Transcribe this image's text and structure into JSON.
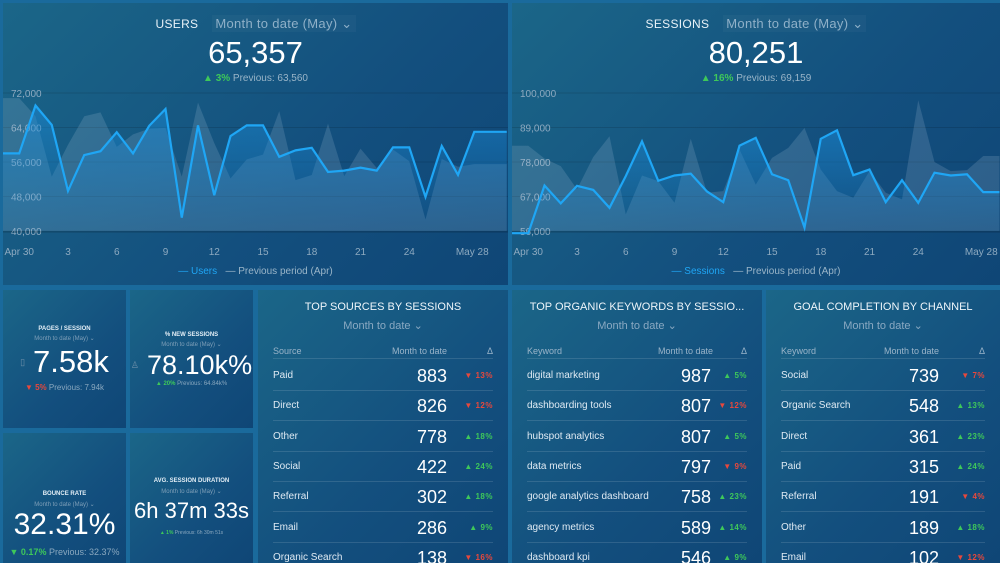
{
  "users": {
    "title": "USERS",
    "range": "Month to date (May)",
    "value": "65,357",
    "change": "3%",
    "direction": "up",
    "previous": "Previous: 63,560",
    "legend_current": "Users",
    "legend_previous": "Previous period (Apr)"
  },
  "sessions": {
    "title": "SESSIONS",
    "range": "Month to date (May)",
    "value": "80,251",
    "change": "16%",
    "direction": "up",
    "previous": "Previous: 69,159",
    "legend_current": "Sessions",
    "legend_previous": "Previous period (Apr)"
  },
  "kpis": [
    {
      "title": "PAGES / SESSION",
      "range": "Month to date (May)",
      "value": "7.58k",
      "change": "5%",
      "direction": "down",
      "previous": "Previous: 7.94k",
      "icon": "document-icon"
    },
    {
      "title": "% NEW SESSIONS",
      "range": "Month to date (May)",
      "value": "78.10k%",
      "change": "20%",
      "direction": "up",
      "previous": "Previous: 64.84k%",
      "icon": "user-icon"
    },
    {
      "title": "BOUNCE RATE",
      "range": "Month to date (May)",
      "value": "32.31%",
      "change": "0.17%",
      "direction": "down-good",
      "previous": "Previous: 32.37%"
    },
    {
      "title": "AVG. SESSION DURATION",
      "range": "Month to date (May)",
      "value": "6h 37m 33s",
      "change": "1%",
      "direction": "up",
      "previous": "Previous: 6h 30m 51s"
    }
  ],
  "tables": [
    {
      "title": "TOP SOURCES BY SESSIONS",
      "range": "Month to date",
      "col1": "Source",
      "col2": "Month to date",
      "col3": "Δ",
      "rows": [
        [
          "Paid",
          "883",
          "13%",
          "down"
        ],
        [
          "Direct",
          "826",
          "12%",
          "down"
        ],
        [
          "Other",
          "778",
          "18%",
          "up"
        ],
        [
          "Social",
          "422",
          "24%",
          "up"
        ],
        [
          "Referral",
          "302",
          "18%",
          "up"
        ],
        [
          "Email",
          "286",
          "9%",
          "up"
        ],
        [
          "Organic Search",
          "138",
          "16%",
          "down"
        ]
      ]
    },
    {
      "title": "TOP ORGANIC KEYWORDS BY SESSIO...",
      "range": "Month to date",
      "col1": "Keyword",
      "col2": "Month to date",
      "col3": "Δ",
      "rows": [
        [
          "digital marketing",
          "987",
          "5%",
          "up"
        ],
        [
          "dashboarding tools",
          "807",
          "12%",
          "down"
        ],
        [
          "hubspot analytics",
          "807",
          "5%",
          "up"
        ],
        [
          "data metrics",
          "797",
          "9%",
          "down"
        ],
        [
          "google analytics dashboard",
          "758",
          "23%",
          "up"
        ],
        [
          "agency metrics",
          "589",
          "14%",
          "up"
        ],
        [
          "dashboard kpi",
          "546",
          "9%",
          "up"
        ]
      ]
    },
    {
      "title": "GOAL COMPLETION BY CHANNEL",
      "range": "Month to date",
      "col1": "Keyword",
      "col2": "Month to date",
      "col3": "Δ",
      "rows": [
        [
          "Social",
          "739",
          "7%",
          "down"
        ],
        [
          "Organic Search",
          "548",
          "13%",
          "up"
        ],
        [
          "Direct",
          "361",
          "23%",
          "up"
        ],
        [
          "Paid",
          "315",
          "24%",
          "up"
        ],
        [
          "Referral",
          "191",
          "4%",
          "down"
        ],
        [
          "Other",
          "189",
          "18%",
          "up"
        ],
        [
          "Email",
          "102",
          "12%",
          "down"
        ]
      ]
    }
  ],
  "colors": {
    "line": "#1fa6f5",
    "up": "#3ec85a",
    "down": "#e8483c"
  },
  "chart_data": [
    {
      "type": "line",
      "title": "USERS",
      "ylim": [
        40000,
        72000
      ],
      "yticks": [
        "72,000",
        "64,000",
        "56,000",
        "48,000",
        "40,000"
      ],
      "ytick_values": [
        72000,
        64000,
        56000,
        48000,
        40000
      ],
      "xticks": [
        "Apr 30",
        "3",
        "6",
        "9",
        "12",
        "15",
        "18",
        "21",
        "24",
        "May 28"
      ],
      "xtick_index": [
        1,
        4,
        7,
        10,
        13,
        16,
        19,
        22,
        25,
        29
      ],
      "grid": true,
      "legend": "bottom",
      "x": [
        "Apr 29",
        "Apr 30",
        "May 1",
        "May 2",
        "May 3",
        "May 4",
        "May 5",
        "May 6",
        "May 7",
        "May 8",
        "May 9",
        "May 10",
        "May 11",
        "May 12",
        "May 13",
        "May 14",
        "May 15",
        "May 16",
        "May 17",
        "May 18",
        "May 19",
        "May 20",
        "May 21",
        "May 22",
        "May 23",
        "May 24",
        "May 25",
        "May 26",
        "May 27",
        "May 28",
        "May 29",
        "May 30"
      ],
      "series": [
        {
          "name": "Users",
          "values": [
            58000,
            58000,
            69100,
            64600,
            49300,
            57600,
            58500,
            62900,
            58000,
            64400,
            68300,
            43100,
            64500,
            48300,
            62000,
            64500,
            64500,
            57200,
            58700,
            59300,
            53700,
            54000,
            54700,
            54000,
            59400,
            59400,
            47900,
            59700,
            53000,
            63000,
            63000,
            63000
          ]
        },
        {
          "name": "Previous period (Apr)",
          "values": [
            70800,
            70800,
            66600,
            52600,
            60000,
            66600,
            67500,
            59500,
            62400,
            63700,
            63900,
            52600,
            69800,
            60400,
            52200,
            56600,
            57700,
            67800,
            51800,
            53000,
            64900,
            52700,
            59100,
            54600,
            58900,
            56200,
            42700,
            56700,
            54900,
            55500,
            55500,
            55500
          ]
        }
      ]
    },
    {
      "type": "line",
      "title": "SESSIONS",
      "ylim": [
        56000,
        100000
      ],
      "yticks": [
        "100,000",
        "89,000",
        "78,000",
        "67,000",
        "56,000"
      ],
      "ytick_values": [
        100000,
        89000,
        78000,
        67000,
        56000
      ],
      "xticks": [
        "Apr 30",
        "3",
        "6",
        "9",
        "12",
        "15",
        "18",
        "21",
        "24",
        "May 28"
      ],
      "xtick_index": [
        1,
        4,
        7,
        10,
        13,
        16,
        19,
        22,
        25,
        29
      ],
      "grid": true,
      "legend": "bottom",
      "x": [
        "Apr 29",
        "Apr 30",
        "May 1",
        "May 2",
        "May 3",
        "May 4",
        "May 5",
        "May 6",
        "May 7",
        "May 8",
        "May 9",
        "May 10",
        "May 11",
        "May 12",
        "May 13",
        "May 14",
        "May 15",
        "May 16",
        "May 17",
        "May 18",
        "May 19",
        "May 20",
        "May 21",
        "May 22",
        "May 23",
        "May 24",
        "May 25",
        "May 26",
        "May 27",
        "May 28",
        "May 29"
      ],
      "series": [
        {
          "name": "Sessions",
          "values": [
            55300,
            55300,
            70500,
            64800,
            70400,
            69100,
            63400,
            73500,
            84600,
            72000,
            73700,
            74300,
            68600,
            65200,
            83200,
            85700,
            74100,
            72200,
            57100,
            85400,
            88100,
            73800,
            75600,
            65200,
            72200,
            65000,
            74600,
            73700,
            74100,
            68400,
            68400
          ]
        },
        {
          "name": "Previous period (Apr)",
          "values": [
            83200,
            83200,
            79100,
            76700,
            69300,
            79600,
            86200,
            61300,
            73700,
            71900,
            65000,
            85400,
            68200,
            68700,
            82000,
            70800,
            79300,
            82500,
            88900,
            75600,
            68700,
            66600,
            75100,
            68200,
            66100,
            97700,
            78000,
            75100,
            75400,
            79900,
            79900
          ]
        }
      ]
    }
  ]
}
